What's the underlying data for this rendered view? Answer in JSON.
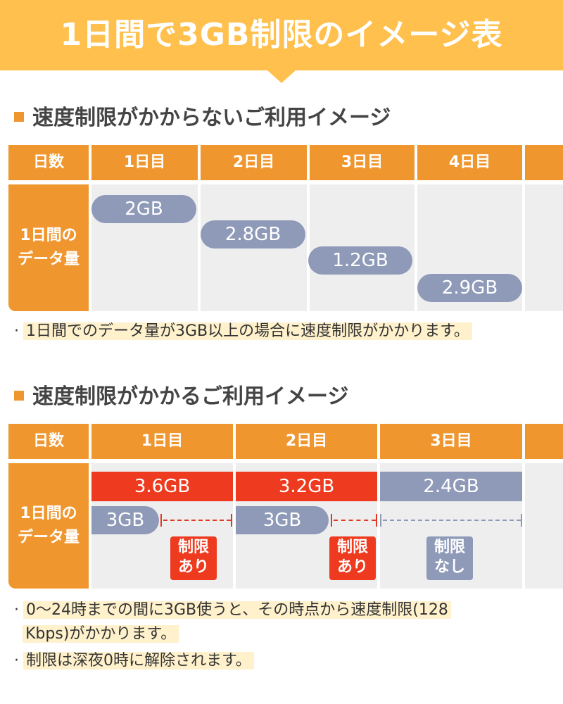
{
  "banner": {
    "title": "1日間で3GB制限のイメージ表"
  },
  "section1": {
    "title": "速度制限がかからないご利用イメージ",
    "header_label": "日数",
    "days": [
      "1日目",
      "2日目",
      "3日目",
      "4日目"
    ],
    "row_label_line1": "1日間の",
    "row_label_line2": "データ量",
    "usage": [
      "2GB",
      "2.8GB",
      "1.2GB",
      "2.9GB"
    ],
    "note": "1日間でのデータ量が3GB以上の場合に速度制限がかかります。"
  },
  "section2": {
    "title": "速度制限がかかるご利用イメージ",
    "header_label": "日数",
    "days": [
      "1日目",
      "2日目",
      "3日目"
    ],
    "row_label_line1": "1日間の",
    "row_label_line2": "データ量",
    "usage": [
      "3.6GB",
      "3.2GB",
      "2.4GB"
    ],
    "limit_marker": "3GB",
    "badges": [
      {
        "line1": "制限",
        "line2": "あり"
      },
      {
        "line1": "制限",
        "line2": "あり"
      },
      {
        "line1": "制限",
        "line2": "なし"
      }
    ],
    "note1_line1": "0〜24時までの間に3GB使うと、その時点から速度制限(128",
    "note1_line2": "Kbps)がかかります。",
    "note2": "制限は深夜0時に解除されます。"
  },
  "colors": {
    "orange": "#F0962E",
    "banner": "#FFC04D",
    "red": "#EE3A1E",
    "slate": "#8E9AB8",
    "cell": "#EEEEEE",
    "highlight": "#FFF1CC"
  }
}
